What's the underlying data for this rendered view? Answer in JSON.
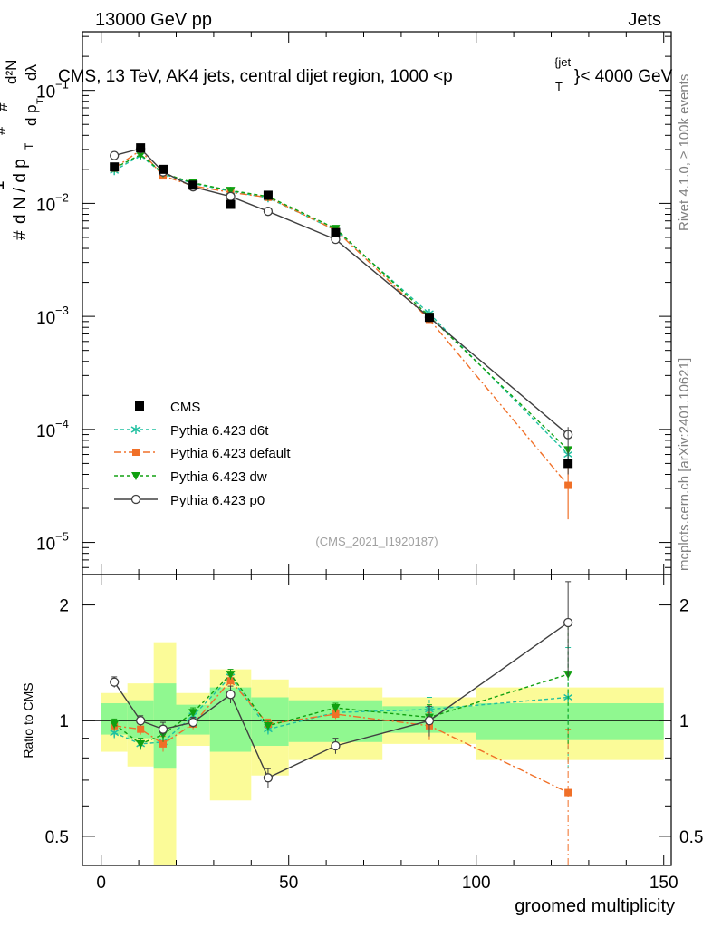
{
  "header": {
    "left": "13000 GeV pp",
    "right": "Jets",
    "title": "CMS, 13 TeV, AK4 jets, central dijet region, 1000 <p",
    "title_sup": "{jet",
    "title_sub": "T",
    "title_end": "}< 4000 GeV"
  },
  "side": {
    "rivet": "Rivet 4.1.0, ≥ 100k events",
    "mcplots": "mcplots.cern.ch [arXiv:2401.10621]"
  },
  "watermark": "(CMS_2021_I1920187)",
  "ylabel_main": {
    "hash": "#",
    "one": "1",
    "dN": "d N / d p",
    "dN_sub": "T",
    "hash2": "#",
    "num": "d²N",
    "den": "d p",
    "den_sub": "T",
    "dlam": "dλ",
    "hash3": "#"
  },
  "colors": {
    "cms": "#000000",
    "d6t": "#20c0a0",
    "default": "#f07028",
    "dw": "#10a010",
    "p0": "#404040",
    "band_inner": "#90f890",
    "band_outer": "#fbfb98"
  },
  "chart_data": [
    {
      "type": "scatter",
      "name": "main",
      "yscale": "log",
      "xlim": [
        -5,
        152
      ],
      "ylim": [
        5.2e-06,
        0.33
      ],
      "yticks": [
        {
          "v": 1e-05,
          "base": "10",
          "exp": "−5"
        },
        {
          "v": 0.0001,
          "base": "10",
          "exp": "−4"
        },
        {
          "v": 0.001,
          "base": "10",
          "exp": "−3"
        },
        {
          "v": 0.01,
          "base": "10",
          "exp": "−2"
        },
        {
          "v": 0.1,
          "base": "10",
          "exp": "−1"
        }
      ],
      "cms": {
        "label": "CMS",
        "x": [
          3.5,
          10.5,
          16.5,
          24.5,
          34.5,
          44.5,
          62.5,
          87.5,
          124.5
        ],
        "y": [
          0.021,
          0.031,
          0.02,
          0.0145,
          0.0098,
          0.0118,
          0.0055,
          0.00098,
          5e-05
        ]
      },
      "series": [
        {
          "key": "d6t",
          "name": "Pythia 6.423 d6t",
          "marker": "star",
          "dash": "4,3",
          "x": [
            3.5,
            10.5,
            16.5,
            24.5,
            34.5,
            44.5,
            62.5,
            87.5,
            124.5
          ],
          "y": [
            0.0195,
            0.0265,
            0.0182,
            0.015,
            0.0128,
            0.0112,
            0.0058,
            0.00106,
            6e-05
          ]
        },
        {
          "key": "default",
          "name": "Pythia 6.423 default",
          "marker": "square",
          "dash": "8,3,2,3",
          "x": [
            3.5,
            10.5,
            16.5,
            24.5,
            34.5,
            44.5,
            62.5,
            87.5,
            124.5
          ],
          "y": [
            0.0205,
            0.0295,
            0.0175,
            0.0143,
            0.0125,
            0.0113,
            0.0058,
            0.00094,
            3.2e-05
          ]
        },
        {
          "key": "dw",
          "name": "Pythia 6.423 dw",
          "marker": "triangle",
          "dash": "4,3",
          "x": [
            3.5,
            10.5,
            16.5,
            24.5,
            34.5,
            44.5,
            62.5,
            87.5,
            124.5
          ],
          "y": [
            0.0205,
            0.027,
            0.0185,
            0.0152,
            0.013,
            0.0115,
            0.006,
            0.001,
            6.6e-05
          ]
        },
        {
          "key": "p0",
          "name": "Pythia 6.423 p0",
          "marker": "circle",
          "dash": "",
          "x": [
            3.5,
            10.5,
            16.5,
            24.5,
            34.5,
            44.5,
            62.5,
            87.5,
            124.5
          ],
          "y": [
            0.0265,
            0.0305,
            0.019,
            0.014,
            0.0115,
            0.0085,
            0.0048,
            0.00098,
            9e-05
          ]
        }
      ]
    },
    {
      "type": "scatter",
      "name": "ratio",
      "ylabel": "Ratio to CMS",
      "xlabel": "groomed multiplicity",
      "yscale": "log",
      "xlim": [
        -5,
        152
      ],
      "ylim": [
        0.42,
        2.4
      ],
      "yticks": [
        0.5,
        1,
        2
      ],
      "xticks": [
        0,
        50,
        100,
        150
      ],
      "bands": [
        {
          "x0": 0,
          "x1": 7,
          "inner": [
            0.92,
            1.11
          ],
          "outer": [
            0.83,
            1.18
          ]
        },
        {
          "x0": 7,
          "x1": 14,
          "inner": [
            0.9,
            1.13
          ],
          "outer": [
            0.76,
            1.25
          ]
        },
        {
          "x0": 14,
          "x1": 20,
          "inner": [
            0.75,
            1.25
          ],
          "outer": [
            0.4,
            1.6
          ]
        },
        {
          "x0": 20,
          "x1": 29,
          "inner": [
            0.92,
            1.1
          ],
          "outer": [
            0.86,
            1.18
          ]
        },
        {
          "x0": 29,
          "x1": 40,
          "inner": [
            0.83,
            1.22
          ],
          "outer": [
            0.62,
            1.36
          ]
        },
        {
          "x0": 40,
          "x1": 50,
          "inner": [
            0.86,
            1.15
          ],
          "outer": [
            0.72,
            1.28
          ]
        },
        {
          "x0": 50,
          "x1": 75,
          "inner": [
            0.88,
            1.13
          ],
          "outer": [
            0.79,
            1.22
          ]
        },
        {
          "x0": 75,
          "x1": 100,
          "inner": [
            0.93,
            1.09
          ],
          "outer": [
            0.87,
            1.15
          ]
        },
        {
          "x0": 100,
          "x1": 150,
          "inner": [
            0.89,
            1.11
          ],
          "outer": [
            0.79,
            1.22
          ]
        }
      ],
      "cms_points": [
        3.5,
        10.5,
        16.5,
        24.5,
        34.5,
        44.5,
        62.5,
        87.5,
        124.5
      ],
      "series": [
        {
          "key": "d6t",
          "marker": "star",
          "dash": "4,3",
          "x": [
            3.5,
            10.5,
            16.5,
            24.5,
            34.5,
            44.5,
            62.5,
            87.5,
            124.5
          ],
          "y": [
            0.93,
            0.87,
            0.88,
            1.03,
            1.3,
            0.95,
            1.05,
            1.07,
            1.15
          ],
          "err": [
            0.03,
            0.03,
            0.04,
            0.03,
            0.04,
            0.03,
            0.03,
            0.08,
            0.4
          ]
        },
        {
          "key": "default",
          "marker": "square",
          "dash": "8,3,2,3",
          "x": [
            3.5,
            10.5,
            16.5,
            24.5,
            34.5,
            44.5,
            62.5,
            87.5,
            124.5
          ],
          "y": [
            0.97,
            0.95,
            0.87,
            0.98,
            1.27,
            0.98,
            1.04,
            0.97,
            0.65
          ],
          "err": [
            0.03,
            0.03,
            0.04,
            0.03,
            0.04,
            0.03,
            0.03,
            0.08,
            0.3
          ]
        },
        {
          "key": "dw",
          "marker": "triangle",
          "dash": "4,3",
          "x": [
            3.5,
            10.5,
            16.5,
            24.5,
            34.5,
            44.5,
            62.5,
            87.5,
            124.5
          ],
          "y": [
            0.98,
            0.87,
            0.92,
            1.05,
            1.32,
            0.97,
            1.08,
            1.02,
            1.32
          ],
          "err": [
            0.03,
            0.03,
            0.04,
            0.03,
            0.04,
            0.03,
            0.03,
            0.08,
            0.45
          ]
        },
        {
          "key": "p0",
          "marker": "circle",
          "dash": "",
          "x": [
            3.5,
            10.5,
            16.5,
            24.5,
            34.5,
            44.5,
            62.5,
            87.5,
            124.5
          ],
          "y": [
            1.26,
            1.0,
            0.95,
            0.99,
            1.17,
            0.71,
            0.86,
            1.0,
            1.8
          ],
          "err": [
            0.04,
            0.03,
            0.04,
            0.03,
            0.06,
            0.04,
            0.04,
            0.09,
            0.5
          ]
        }
      ]
    }
  ]
}
